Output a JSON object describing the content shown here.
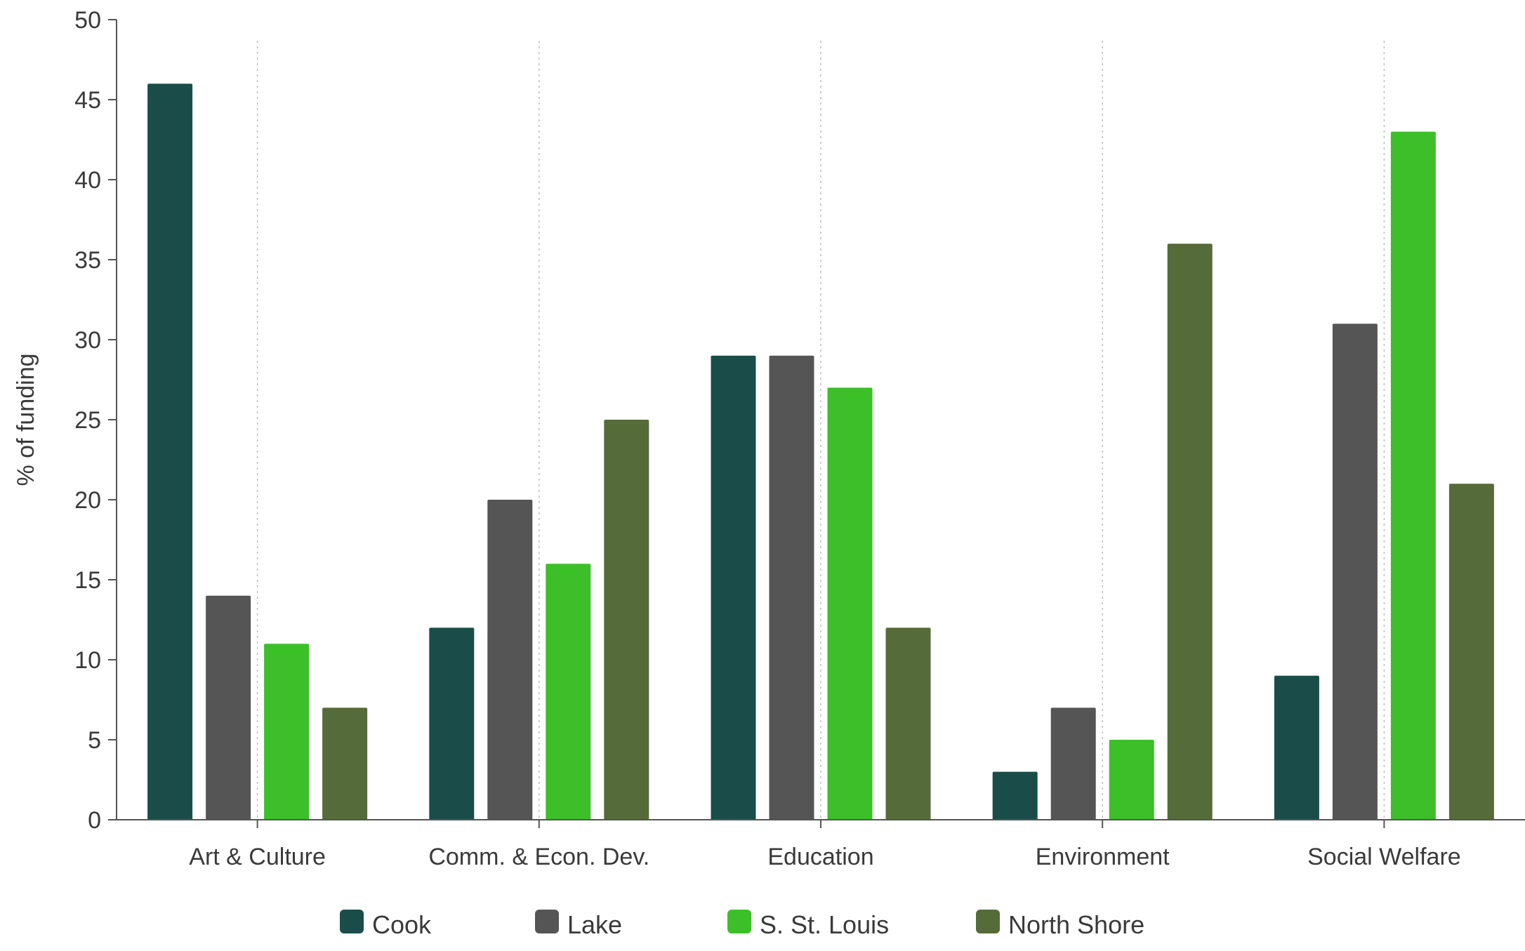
{
  "chart_data": {
    "type": "bar",
    "title": "",
    "xlabel": "",
    "ylabel": "% of funding",
    "ylim": [
      0,
      50
    ],
    "yticks": [
      0,
      5,
      10,
      15,
      20,
      25,
      30,
      35,
      40,
      45,
      50
    ],
    "categories": [
      "Art & Culture",
      "Comm. & Econ. Dev.",
      "Education",
      "Environment",
      "Social Welfare"
    ],
    "series": [
      {
        "name": "Cook",
        "color": "#1a4d4a",
        "values": [
          46,
          12,
          29,
          3,
          9
        ]
      },
      {
        "name": "Lake",
        "color": "#555555",
        "values": [
          14,
          20,
          29,
          7,
          31
        ]
      },
      {
        "name": "S. St. Louis",
        "color": "#3dbf2a",
        "values": [
          11,
          16,
          27,
          5,
          43
        ]
      },
      {
        "name": "North Shore",
        "color": "#556b3a",
        "values": [
          7,
          25,
          12,
          36,
          21
        ]
      }
    ],
    "grid": {
      "vertical_dotted_at_categories": true,
      "horizontal": false
    },
    "legend": {
      "position": "bottom-center"
    }
  }
}
